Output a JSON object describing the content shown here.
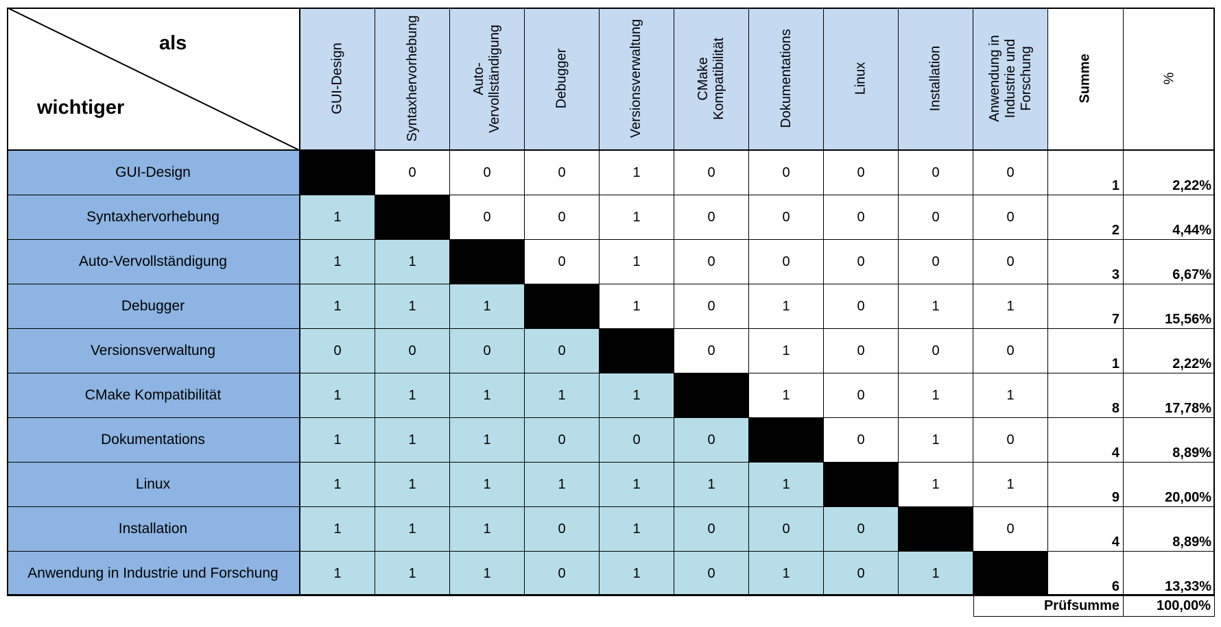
{
  "corner": {
    "top_label": "als",
    "bottom_label": "wichtiger"
  },
  "criteria": [
    "GUI-Design",
    "Syntaxhervorhebung",
    "Auto-Vervollständigung",
    "Debugger",
    "Versionsverwaltung",
    "CMake Kompatibilität",
    "Dokumentations",
    "Linux",
    "Installation",
    "Anwendung in Industrie und Forschung"
  ],
  "column_headers": [
    [
      "GUI-Design"
    ],
    [
      "Syntaxhervorhebung"
    ],
    [
      "Auto-",
      "Vervollständigung"
    ],
    [
      "Debugger"
    ],
    [
      "Versionsverwaltung"
    ],
    [
      "CMake",
      "Kompatibilität"
    ],
    [
      "Dokumentations"
    ],
    [
      "Linux"
    ],
    [
      "Installation"
    ],
    [
      "Anwendung in",
      "Industrie und",
      "Forschung"
    ]
  ],
  "summary_headers": {
    "sum": "Summe",
    "percent": "%"
  },
  "matrix": [
    [
      null,
      "0",
      "0",
      "0",
      "1",
      "0",
      "0",
      "0",
      "0",
      "0"
    ],
    [
      "1",
      null,
      "0",
      "0",
      "1",
      "0",
      "0",
      "0",
      "0",
      "0"
    ],
    [
      "1",
      "1",
      null,
      "0",
      "1",
      "0",
      "0",
      "0",
      "0",
      "0"
    ],
    [
      "1",
      "1",
      "1",
      null,
      "1",
      "0",
      "1",
      "0",
      "1",
      "1"
    ],
    [
      "0",
      "0",
      "0",
      "0",
      null,
      "0",
      "1",
      "0",
      "0",
      "0"
    ],
    [
      "1",
      "1",
      "1",
      "1",
      "1",
      null,
      "1",
      "0",
      "1",
      "1"
    ],
    [
      "1",
      "1",
      "1",
      "0",
      "0",
      "0",
      null,
      "0",
      "1",
      "0"
    ],
    [
      "1",
      "1",
      "1",
      "1",
      "1",
      "1",
      "1",
      null,
      "1",
      "1"
    ],
    [
      "1",
      "1",
      "1",
      "0",
      "1",
      "0",
      "0",
      "0",
      null,
      "0"
    ],
    [
      "1",
      "1",
      "1",
      "0",
      "1",
      "0",
      "1",
      "0",
      "1",
      null
    ]
  ],
  "sums": [
    "1",
    "2",
    "3",
    "7",
    "1",
    "8",
    "4",
    "9",
    "4",
    "6"
  ],
  "percents": [
    "2,22%",
    "4,44%",
    "6,67%",
    "15,56%",
    "2,22%",
    "17,78%",
    "8,89%",
    "20,00%",
    "8,89%",
    "13,33%"
  ],
  "checksum": {
    "label": "Prüfsumme",
    "value": "100,00%"
  },
  "colors": {
    "column_header_bg": "#c5d9f1",
    "row_header_bg": "#8db4e2",
    "lower_triangle_bg": "#b7dee8",
    "upper_triangle_bg": "#ffffff",
    "diagonal_bg": "#000000"
  }
}
